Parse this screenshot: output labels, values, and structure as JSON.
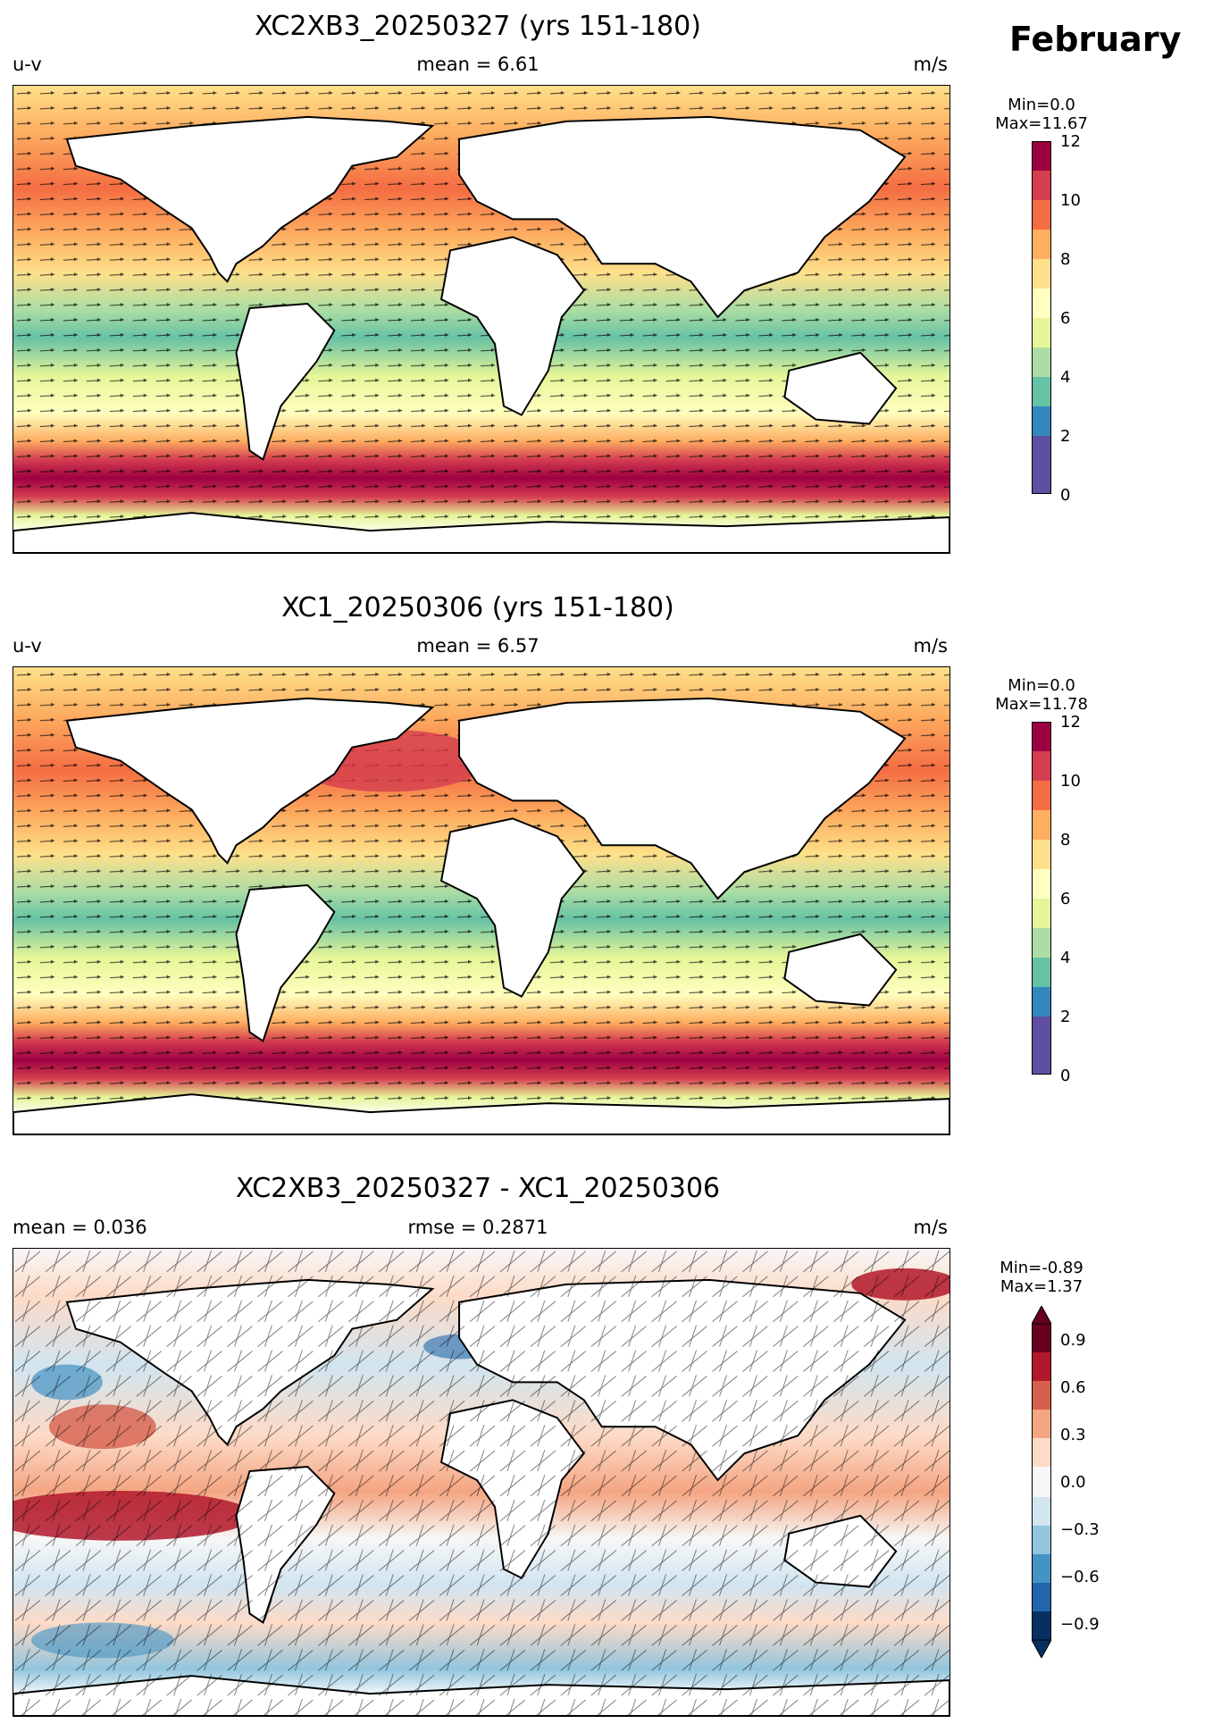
{
  "month_label": "February",
  "units": "m/s",
  "panels": [
    {
      "title": "XC2XB3_20250327 (yrs 151-180)",
      "left_label": "u-v",
      "center_label": "mean = 6.61",
      "right_label": "m/s",
      "min_label": "Min=0.0",
      "max_label": "Max=11.67",
      "colorbar_ticks": [
        "12",
        "10",
        "8",
        "6",
        "4",
        "2",
        "0"
      ]
    },
    {
      "title": "XC1_20250306 (yrs 151-180)",
      "left_label": "u-v",
      "center_label": "mean = 6.57",
      "right_label": "m/s",
      "min_label": "Min=0.0",
      "max_label": "Max=11.78",
      "colorbar_ticks": [
        "12",
        "10",
        "8",
        "6",
        "4",
        "2",
        "0"
      ]
    },
    {
      "title": "XC2XB3_20250327 - XC1_20250306",
      "left_label": "mean = 0.036",
      "center_label": "rmse = 0.2871",
      "right_label": "m/s",
      "min_label": "Min=-0.89",
      "max_label": "Max=1.37",
      "colorbar_ticks": [
        "0.9",
        "0.6",
        "0.3",
        "0.0",
        "−0.3",
        "−0.6",
        "−0.9"
      ]
    }
  ],
  "colors": {
    "speed_scale": [
      "#5e4fa2",
      "#3288bd",
      "#66c2a5",
      "#abdda4",
      "#e6f598",
      "#ffffbf",
      "#fee08b",
      "#fdae61",
      "#f46d43",
      "#d53e4f",
      "#9e0142"
    ],
    "diff_scale": [
      "#053061",
      "#2166ac",
      "#4393c3",
      "#92c5de",
      "#d1e5f0",
      "#f7f7f7",
      "#fddbc7",
      "#f4a582",
      "#d6604d",
      "#b2182b",
      "#67001f"
    ],
    "land": "#ffffff",
    "coast": "#000000"
  }
}
